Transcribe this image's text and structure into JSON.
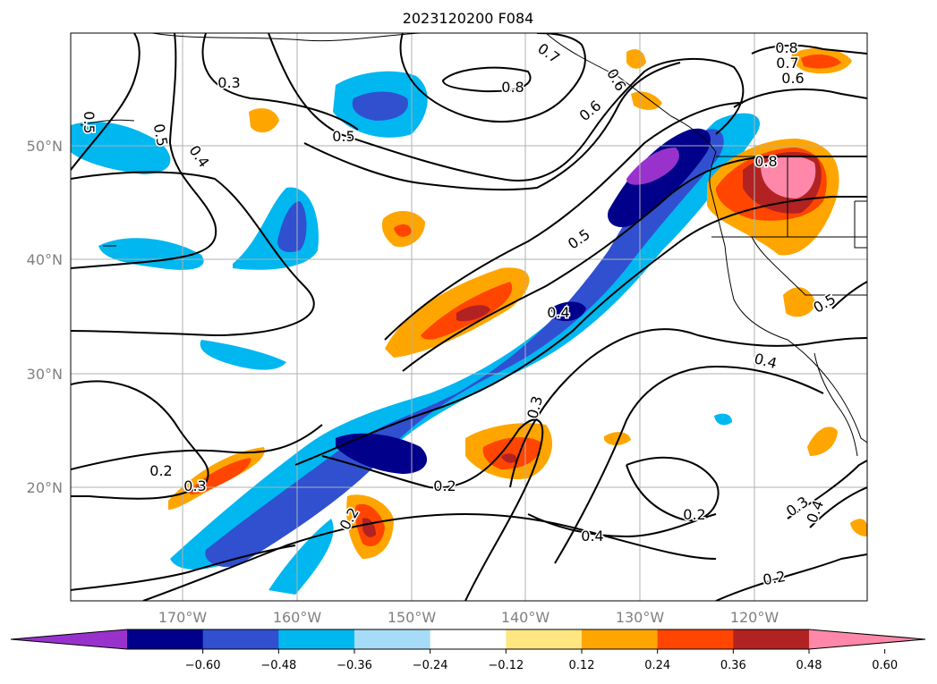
{
  "title": "2023120200 F084",
  "map": {
    "lat_labels": [
      "50°N",
      "40°N",
      "30°N",
      "20°N"
    ],
    "lon_labels": [
      "170°W",
      "160°W",
      "150°W",
      "140°W",
      "130°W",
      "120°W"
    ],
    "contour_labels": [
      "0.3",
      "0.5",
      "0.4",
      "0.5",
      "0.7",
      "0.8",
      "0.6",
      "0.5",
      "0.8",
      "0.7",
      "0.6",
      "0.8",
      "0.5",
      "0.4",
      "0.5",
      "0.4",
      "0.3",
      "0.2",
      "0.3",
      "0.2",
      "0.2",
      "0.2",
      "0.4",
      "0.2",
      "0.3",
      "0.4",
      "0.6"
    ]
  },
  "colorbar": {
    "ticks": [
      "−0.60",
      "−0.48",
      "−0.36",
      "−0.24",
      "−0.12",
      "0.12",
      "0.24",
      "0.36",
      "0.48",
      "0.60"
    ],
    "colors": [
      "#9932cc",
      "#00008b",
      "#3050d0",
      "#00b7f0",
      "#a6dcf7",
      "#ffffff",
      "#ffe680",
      "#ffa500",
      "#ff4500",
      "#b22222",
      "#ff88aa"
    ]
  },
  "colors": {
    "grid": "#b0b0b0",
    "label_gray": "#808080"
  }
}
